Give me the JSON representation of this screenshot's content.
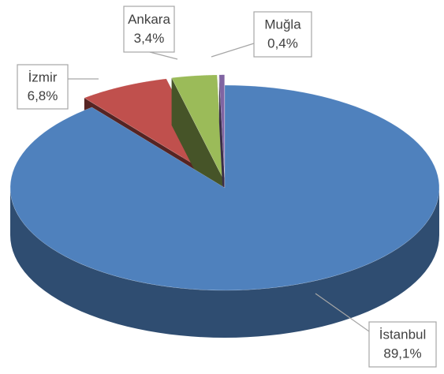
{
  "chart_data": {
    "type": "pie",
    "categories": [
      "İstanbul",
      "İzmir",
      "Ankara",
      "Muğla"
    ],
    "values": [
      89.1,
      6.8,
      3.4,
      0.4
    ],
    "value_labels": [
      "89,1%",
      "6,8%",
      "3,4%",
      "0,4%"
    ],
    "colors": [
      "#4f81bd",
      "#c0504d",
      "#9bbb59",
      "#8064a2"
    ]
  }
}
